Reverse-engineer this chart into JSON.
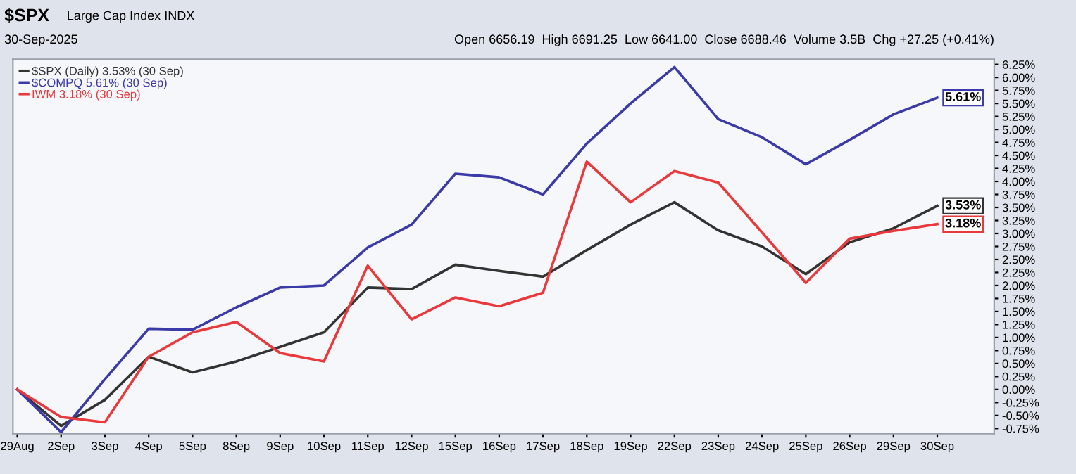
{
  "chart_data": {
    "type": "line",
    "title": "$SPX",
    "subtitle": "Large Cap Index INDX",
    "annotations": [
      "30-Sep-2025",
      "Open 6656.19  High 6691.25  Low 6641.00  Close 6688.46  Volume 3.5B  Chg +27.25 (+0.41%)"
    ],
    "categories": [
      "29Aug",
      "2Sep",
      "3Sep",
      "4Sep",
      "5Sep",
      "8Sep",
      "9Sep",
      "10Sep",
      "11Sep",
      "12Sep",
      "15Sep",
      "16Sep",
      "17Sep",
      "18Sep",
      "19Sep",
      "22Sep",
      "23Sep",
      "24Sep",
      "25Sep",
      "26Sep",
      "29Sep",
      "30Sep"
    ],
    "series": [
      {
        "name": "$SPX (Daily) 3.53% (30 Sep)",
        "color": "#333333",
        "values": [
          0,
          -0.7,
          -0.2,
          0.63,
          0.33,
          0.54,
          0.82,
          1.1,
          1.96,
          1.93,
          2.4,
          2.28,
          2.17,
          2.68,
          3.17,
          3.6,
          3.06,
          2.75,
          2.22,
          2.83,
          3.1,
          3.53
        ],
        "value_labels": [
          null,
          null,
          null,
          null,
          null,
          null,
          null,
          null,
          null,
          null,
          null,
          null,
          null,
          null,
          null,
          null,
          null,
          null,
          null,
          null,
          null,
          "3.53%"
        ]
      },
      {
        "name": "$COMPQ 5.61% (30 Sep)",
        "color": "#3a3aa8",
        "values": [
          0,
          -0.82,
          0.2,
          1.17,
          1.15,
          1.58,
          1.96,
          2.0,
          2.73,
          3.17,
          4.15,
          4.08,
          3.75,
          4.73,
          5.5,
          6.2,
          5.2,
          4.85,
          4.33,
          4.8,
          5.29,
          5.61
        ],
        "value_labels": [
          null,
          null,
          null,
          null,
          null,
          null,
          null,
          null,
          null,
          null,
          null,
          null,
          null,
          null,
          null,
          null,
          null,
          null,
          null,
          null,
          null,
          "5.61%"
        ]
      },
      {
        "name": "IWM 3.18% (30 Sep)",
        "color": "#e8393c",
        "values": [
          0,
          -0.53,
          -0.63,
          0.63,
          1.1,
          1.3,
          0.7,
          0.54,
          2.38,
          1.35,
          1.77,
          1.6,
          1.86,
          4.38,
          3.6,
          4.2,
          3.98,
          3.02,
          2.05,
          2.9,
          3.05,
          3.18
        ],
        "value_labels": [
          null,
          null,
          null,
          null,
          null,
          null,
          null,
          null,
          null,
          null,
          null,
          null,
          null,
          null,
          null,
          null,
          null,
          null,
          null,
          null,
          null,
          "3.18%"
        ]
      }
    ],
    "ylim": [
      -0.85,
      6.35
    ],
    "yticks": [
      {
        "value": 6.25,
        "label": "6.25%"
      },
      {
        "value": 6.0,
        "label": "6.00%"
      },
      {
        "value": 5.75,
        "label": "5.75%"
      },
      {
        "value": 5.5,
        "label": "5.50%"
      },
      {
        "value": 5.25,
        "label": "5.25%"
      },
      {
        "value": 5.0,
        "label": "5.00%"
      },
      {
        "value": 4.75,
        "label": "4.75%"
      },
      {
        "value": 4.5,
        "label": "4.50%"
      },
      {
        "value": 4.25,
        "label": "4.25%"
      },
      {
        "value": 4.0,
        "label": "4.00%"
      },
      {
        "value": 3.75,
        "label": "3.75%"
      },
      {
        "value": 3.5,
        "label": "3.50%"
      },
      {
        "value": 3.25,
        "label": "3.25%"
      },
      {
        "value": 3.0,
        "label": "3.00%"
      },
      {
        "value": 2.75,
        "label": "2.75%"
      },
      {
        "value": 2.5,
        "label": "2.50%"
      },
      {
        "value": 2.25,
        "label": "2.25%"
      },
      {
        "value": 2.0,
        "label": "2.00%"
      },
      {
        "value": 1.75,
        "label": "1.75%"
      },
      {
        "value": 1.5,
        "label": "1.50%"
      },
      {
        "value": 1.25,
        "label": "1.25%"
      },
      {
        "value": 1.0,
        "label": "1.00%"
      },
      {
        "value": 0.75,
        "label": "0.75%"
      },
      {
        "value": 0.5,
        "label": "0.50%"
      },
      {
        "value": 0.25,
        "label": "0.25%"
      },
      {
        "value": 0.0,
        "label": "0.00%"
      },
      {
        "value": -0.25,
        "label": "-0.25%"
      },
      {
        "value": -0.5,
        "label": "-0.50%"
      },
      {
        "value": -0.75,
        "label": "-0.75%"
      }
    ],
    "grid": false,
    "legend": "top left",
    "marker": "none",
    "line_style": "solid"
  }
}
